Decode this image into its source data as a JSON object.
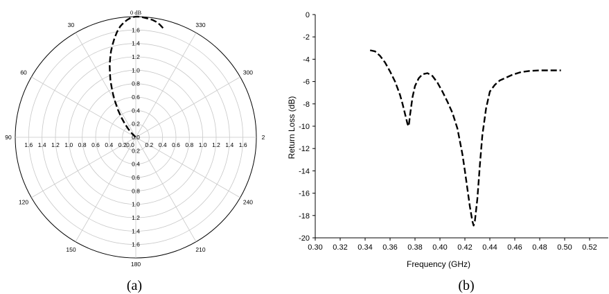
{
  "chart_data": [
    {
      "type": "polar",
      "caption": "(a)",
      "unit_label": "0 dB",
      "radial_ticks": [
        "0.0",
        "0.2",
        "0.4",
        "0.6",
        "0.8",
        "1.0",
        "1.2",
        "1.4",
        "1.6"
      ],
      "angle_labels": [
        "0 dB",
        "30",
        "60",
        "90",
        "120",
        "150",
        "180",
        "210",
        "240",
        "2",
        "300",
        "330"
      ],
      "rmax": 1.8,
      "grid": true,
      "theta_deg": [
        -14,
        -12,
        -10,
        -8,
        -6,
        -4,
        -2,
        0,
        2,
        4,
        6,
        8,
        10,
        12,
        14,
        16,
        18,
        20,
        22,
        24,
        26,
        28,
        30,
        33,
        36,
        39,
        42,
        45,
        50
      ],
      "r": [
        1.68,
        1.72,
        1.75,
        1.77,
        1.78,
        1.79,
        1.8,
        1.8,
        1.79,
        1.76,
        1.72,
        1.67,
        1.6,
        1.52,
        1.43,
        1.34,
        1.24,
        1.14,
        1.03,
        0.93,
        0.82,
        0.72,
        0.62,
        0.49,
        0.37,
        0.26,
        0.17,
        0.09,
        0.0
      ],
      "line_style": "dashed"
    },
    {
      "type": "line",
      "caption": "(b)",
      "xlabel": "Frequency (GHz)",
      "ylabel": "Return Loss (dB)",
      "xlim": [
        0.3,
        0.535
      ],
      "ylim": [
        -20,
        0
      ],
      "x_ticks": [
        "0.30",
        "0.32",
        "0.34",
        "0.36",
        "0.38",
        "0.40",
        "0.42",
        "0.44",
        "0.46",
        "0.48",
        "0.50",
        "0.52"
      ],
      "y_ticks": [
        "0",
        "-2",
        "-4",
        "-6",
        "-8",
        "-10",
        "-12",
        "-14",
        "-16",
        "-18",
        "-20"
      ],
      "grid": false,
      "line_style": "dashed",
      "series": [
        {
          "x": [
            0.344,
            0.348,
            0.352,
            0.356,
            0.36,
            0.364,
            0.368,
            0.37,
            0.372,
            0.374,
            0.375,
            0.376,
            0.378,
            0.38,
            0.383,
            0.386,
            0.39,
            0.394,
            0.398,
            0.402,
            0.406,
            0.41,
            0.414,
            0.418,
            0.42,
            0.422,
            0.424,
            0.426,
            0.427,
            0.428,
            0.43,
            0.432,
            0.434,
            0.437,
            0.44,
            0.444,
            0.448,
            0.452,
            0.458,
            0.465,
            0.472,
            0.48,
            0.488,
            0.497
          ],
          "y": [
            -3.2,
            -3.3,
            -3.7,
            -4.3,
            -5.1,
            -6.0,
            -7.2,
            -8.0,
            -8.9,
            -9.8,
            -10.0,
            -9.0,
            -7.4,
            -6.4,
            -5.7,
            -5.35,
            -5.25,
            -5.5,
            -6.1,
            -6.9,
            -7.8,
            -8.8,
            -10.2,
            -12.5,
            -14.0,
            -15.6,
            -17.2,
            -18.5,
            -18.9,
            -18.5,
            -16.5,
            -13.5,
            -10.8,
            -8.4,
            -6.9,
            -6.3,
            -5.9,
            -5.7,
            -5.4,
            -5.15,
            -5.05,
            -5.0,
            -5.0,
            -5.0
          ]
        }
      ]
    }
  ]
}
